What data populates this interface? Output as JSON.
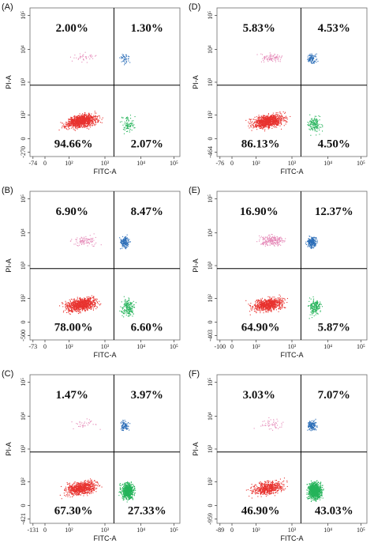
{
  "chart_data": [
    {
      "type": "scatter",
      "panel": "(A)",
      "xlabel": "FITC-A",
      "ylabel": "PI-A",
      "x_ticks": [
        "-74",
        "0",
        "10²",
        "10³",
        "10⁴",
        "10⁵"
      ],
      "y_ticks": [
        "-270",
        "0",
        "10²",
        "10³",
        "10⁴",
        "10⁵"
      ],
      "quadrants": {
        "upper_left": "2.00%",
        "upper_right": "1.30%",
        "lower_left": "94.66%",
        "lower_right": "2.07%"
      },
      "quadrant_values": {
        "upper_left": 2.0,
        "upper_right": 1.3,
        "lower_left": 94.66,
        "lower_right": 2.07
      }
    },
    {
      "type": "scatter",
      "panel": "(B)",
      "xlabel": "FITC-A",
      "ylabel": "PI-A",
      "x_ticks": [
        "-73",
        "0",
        "10²",
        "10³",
        "10⁴",
        "10⁵"
      ],
      "y_ticks": [
        "-500",
        "0",
        "10²",
        "10³",
        "10⁴",
        "10⁵"
      ],
      "quadrants": {
        "upper_left": "6.90%",
        "upper_right": "8.47%",
        "lower_left": "78.00%",
        "lower_right": "6.60%"
      },
      "quadrant_values": {
        "upper_left": 6.9,
        "upper_right": 8.47,
        "lower_left": 78.0,
        "lower_right": 6.6
      }
    },
    {
      "type": "scatter",
      "panel": "(C)",
      "xlabel": "FITC-A",
      "ylabel": "PI-A",
      "x_ticks": [
        "-131",
        "0",
        "10²",
        "10³",
        "10⁴",
        "10⁵"
      ],
      "y_ticks": [
        "-421",
        "0",
        "10²",
        "10³",
        "10⁴",
        "10⁵"
      ],
      "quadrants": {
        "upper_left": "1.47%",
        "upper_right": "3.97%",
        "lower_left": "67.30%",
        "lower_right": "27.33%"
      },
      "quadrant_values": {
        "upper_left": 1.47,
        "upper_right": 3.97,
        "lower_left": 67.3,
        "lower_right": 27.33
      }
    },
    {
      "type": "scatter",
      "panel": "(D)",
      "xlabel": "FITC-A",
      "ylabel": "PI-A",
      "x_ticks": [
        "-76",
        "0",
        "10²",
        "10³",
        "10⁴",
        "10⁵"
      ],
      "y_ticks": [
        "-464",
        "0",
        "10²",
        "10³",
        "10⁴",
        "10⁵"
      ],
      "quadrants": {
        "upper_left": "5.83%",
        "upper_right": "4.53%",
        "lower_left": "86.13%",
        "lower_right": "4.50%"
      },
      "quadrant_values": {
        "upper_left": 5.83,
        "upper_right": 4.53,
        "lower_left": 86.13,
        "lower_right": 4.5
      }
    },
    {
      "type": "scatter",
      "panel": "(E)",
      "xlabel": "FITC-A",
      "ylabel": "PI-A",
      "x_ticks": [
        "-100",
        "0",
        "10²",
        "10³",
        "10⁴",
        "10⁵"
      ],
      "y_ticks": [
        "-403",
        "0",
        "10²",
        "10³",
        "10⁴",
        "10⁵"
      ],
      "quadrants": {
        "upper_left": "16.90%",
        "upper_right": "12.37%",
        "lower_left": "64.90%",
        "lower_right": "5.87%"
      },
      "quadrant_values": {
        "upper_left": 16.9,
        "upper_right": 12.37,
        "lower_left": 64.9,
        "lower_right": 5.87
      }
    },
    {
      "type": "scatter",
      "panel": "(F)",
      "xlabel": "FITC-A",
      "ylabel": "PI-A",
      "x_ticks": [
        "-89",
        "0",
        "10²",
        "10³",
        "10⁴",
        "10⁵"
      ],
      "y_ticks": [
        "-959",
        "0",
        "10²",
        "10³",
        "10⁴",
        "10⁵"
      ],
      "quadrants": {
        "upper_left": "3.03%",
        "upper_right": "7.07%",
        "lower_left": "46.90%",
        "lower_right": "43.03%"
      },
      "quadrant_values": {
        "upper_left": 3.03,
        "upper_right": 7.07,
        "lower_left": 46.9,
        "lower_right": 43.03
      }
    }
  ],
  "colors": {
    "live": "#e8322f",
    "early_apoptotic": "#25b35a",
    "late_apoptotic": "#2d6fb8",
    "necrotic": "#e58ab8",
    "gate": "#000000",
    "frame": "#6b6b6b"
  }
}
